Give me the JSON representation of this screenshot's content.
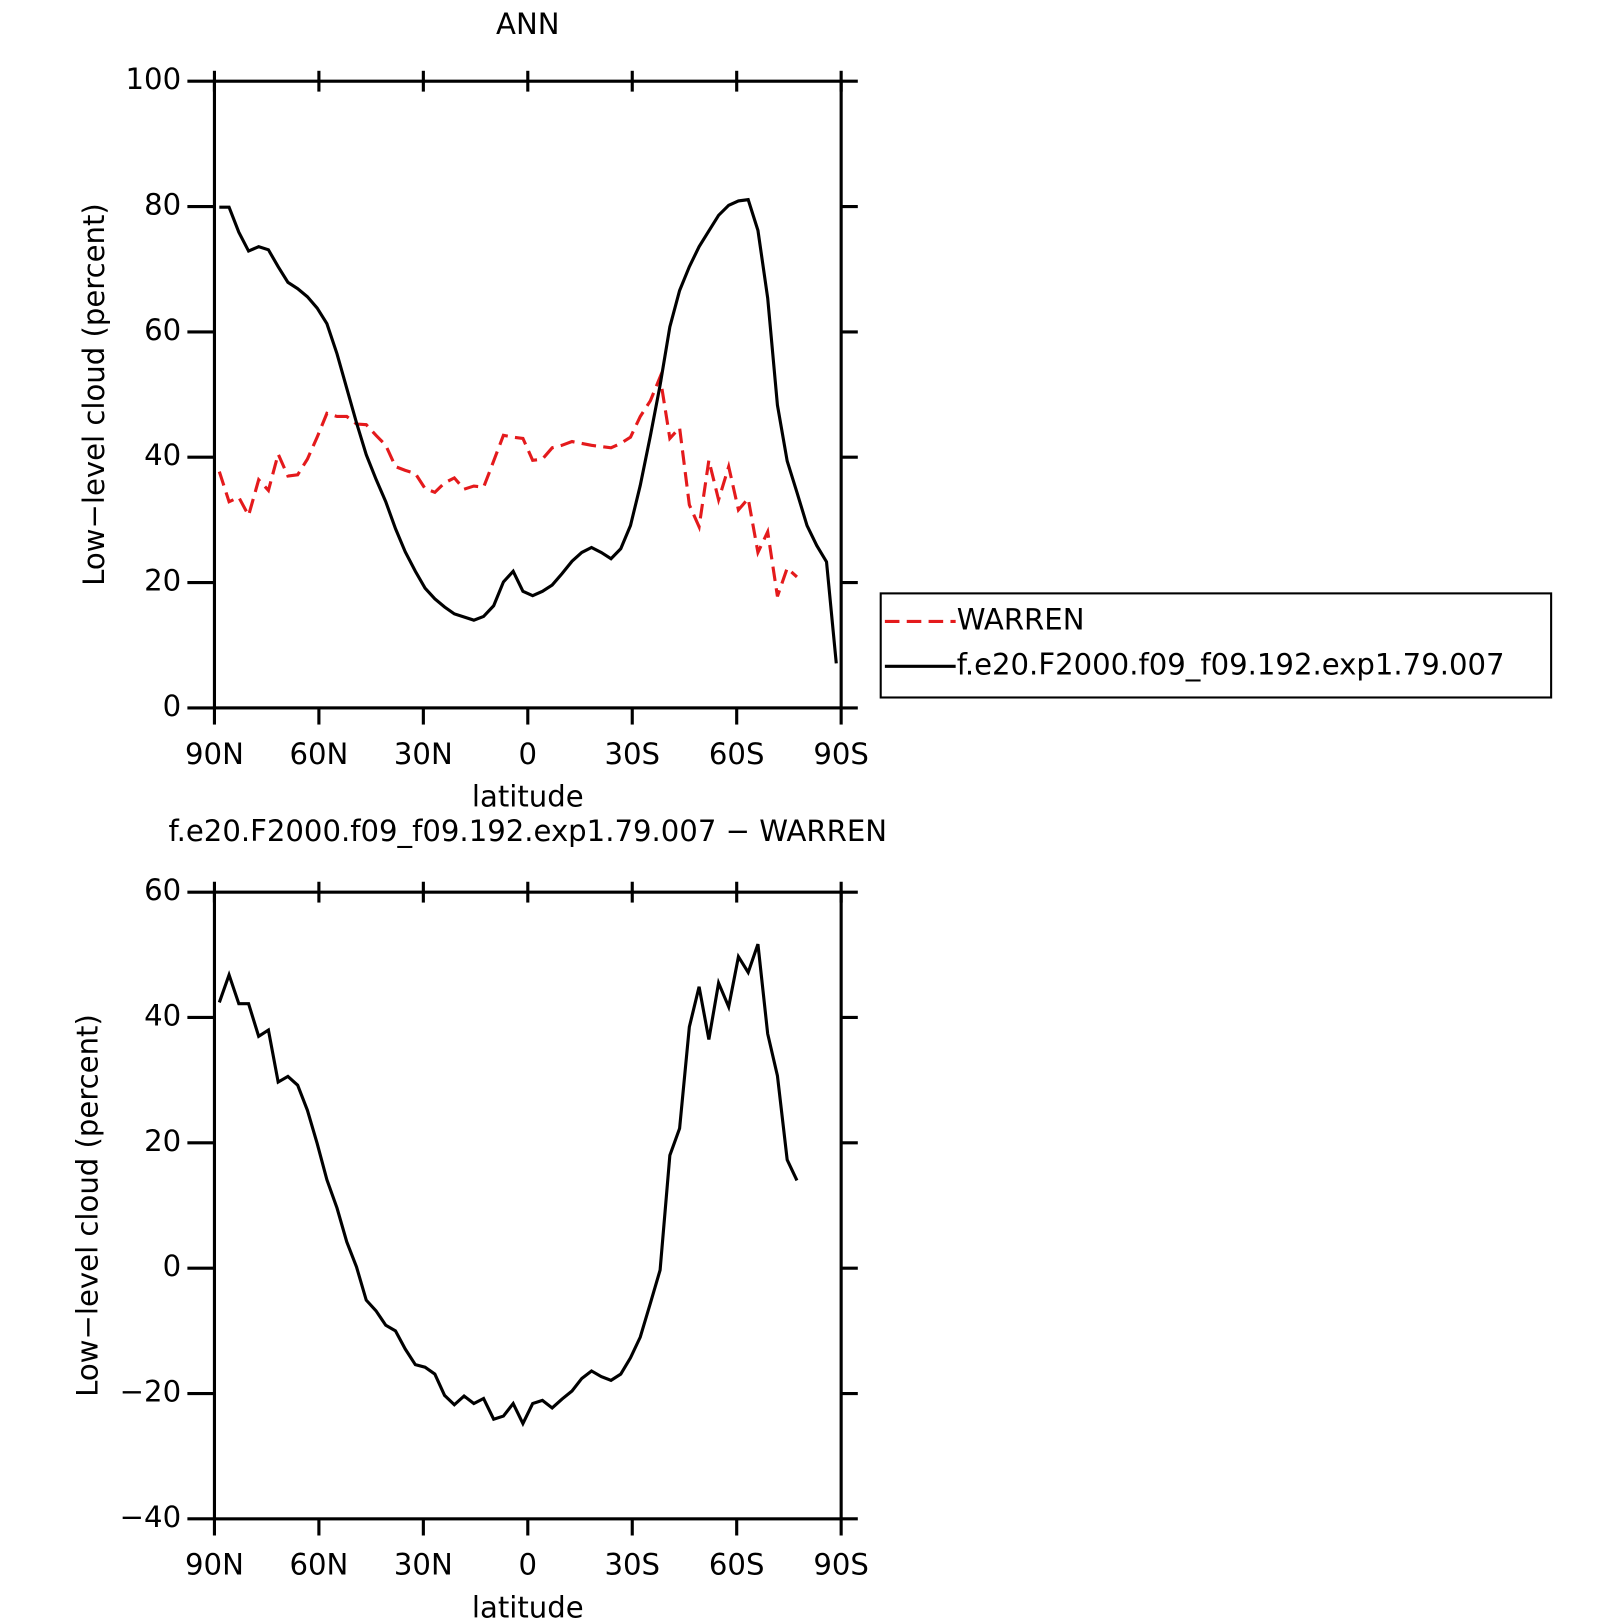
{
  "chart_data": [
    {
      "type": "line",
      "title": "ANN",
      "xlabel": "latitude",
      "ylabel": "Low−level cloud (percent)",
      "x": [
        88.6,
        85.8,
        83.0,
        80.2,
        77.3,
        74.5,
        71.7,
        68.9,
        66.1,
        63.3,
        60.5,
        57.7,
        54.8,
        52.0,
        49.2,
        46.4,
        43.6,
        40.8,
        38.0,
        35.2,
        32.3,
        29.5,
        26.7,
        23.9,
        21.1,
        18.3,
        15.5,
        12.7,
        9.8,
        7.0,
        4.2,
        1.4,
        -1.4,
        -4.2,
        -7.0,
        -9.8,
        -12.7,
        -15.5,
        -18.3,
        -21.1,
        -23.9,
        -26.7,
        -29.5,
        -32.3,
        -35.2,
        -38.0,
        -40.8,
        -43.6,
        -46.4,
        -49.2,
        -52.0,
        -54.8,
        -57.7,
        -60.5,
        -63.3,
        -66.1,
        -68.9,
        -71.7,
        -74.5,
        -77.3,
        -80.2,
        -83.0,
        -85.8,
        -88.6
      ],
      "series": [
        {
          "name": "WARREN",
          "color": "#e41a1c",
          "linestyle": "dashed",
          "values": [
            37.7,
            32.9,
            33.6,
            30.7,
            36.4,
            34.7,
            40.5,
            37.0,
            37.2,
            39.7,
            43.2,
            47.0,
            46.5,
            46.5,
            45.3,
            45.2,
            43.5,
            41.9,
            38.5,
            37.9,
            37.4,
            35.0,
            34.4,
            35.9,
            36.7,
            34.9,
            35.4,
            35.2,
            39.4,
            43.5,
            43.2,
            43.0,
            39.5,
            39.7,
            41.5,
            41.9,
            42.5,
            42.2,
            41.9,
            41.7,
            41.5,
            42.2,
            43.2,
            46.5,
            49.0,
            52.8,
            43.0,
            44.7,
            32.4,
            28.9,
            39.5,
            33.2,
            38.5,
            31.6,
            33.4,
            24.8,
            28.1,
            17.8,
            22.3,
            20.9,
            null,
            null,
            null,
            null
          ]
        },
        {
          "name": "f.e20.F2000.f09_f09.192.exp1.79.007",
          "color": "#000000",
          "linestyle": "solid",
          "values": [
            79.9,
            79.9,
            75.9,
            72.9,
            73.6,
            73.1,
            70.4,
            67.9,
            66.9,
            65.6,
            63.8,
            61.3,
            56.5,
            51.0,
            45.5,
            40.4,
            36.5,
            32.9,
            28.6,
            24.9,
            21.8,
            19.1,
            17.4,
            16.1,
            15.0,
            14.5,
            14.0,
            14.6,
            16.3,
            20.1,
            21.8,
            18.6,
            17.9,
            18.6,
            19.6,
            21.4,
            23.4,
            24.8,
            25.6,
            24.8,
            23.8,
            25.4,
            29.1,
            35.5,
            43.4,
            51.5,
            60.8,
            66.6,
            70.4,
            73.6,
            76.1,
            78.6,
            80.2,
            80.9,
            81.1,
            76.2,
            65.4,
            48.3,
            39.4,
            34.4,
            29.1,
            25.9,
            23.3,
            7.1
          ]
        }
      ],
      "xlim": [
        90,
        -90
      ],
      "xticks": [
        {
          "value": 90,
          "label": "90N"
        },
        {
          "value": 60,
          "label": "60N"
        },
        {
          "value": 30,
          "label": "30N"
        },
        0,
        {
          "value": -30,
          "label": "30S"
        },
        {
          "value": -60,
          "label": "60S"
        },
        {
          "value": -90,
          "label": "90S"
        }
      ],
      "ylim": [
        0,
        100
      ],
      "yticks": [
        0,
        20,
        40,
        60,
        80,
        100
      ],
      "legend": "right"
    },
    {
      "type": "line",
      "title": "f.e20.F2000.f09_f09.192.exp1.79.007 − WARREN",
      "xlabel": "latitude",
      "ylabel": "Low−level cloud (percent)",
      "x": [
        88.6,
        85.8,
        83.0,
        80.2,
        77.3,
        74.5,
        71.7,
        68.9,
        66.1,
        63.3,
        60.5,
        57.7,
        54.8,
        52.0,
        49.2,
        46.4,
        43.6,
        40.8,
        38.0,
        35.2,
        32.3,
        29.5,
        26.7,
        23.9,
        21.1,
        18.3,
        15.5,
        12.7,
        9.8,
        7.0,
        4.2,
        1.4,
        -1.4,
        -4.2,
        -7.0,
        -9.8,
        -12.7,
        -15.5,
        -18.3,
        -21.1,
        -23.9,
        -26.7,
        -29.5,
        -32.3,
        -35.2,
        -38.0,
        -40.8,
        -43.6,
        -46.4,
        -49.2,
        -52.0,
        -54.8,
        -57.7,
        -60.5,
        -63.3,
        -66.1,
        -68.9,
        -71.7,
        -74.5,
        -77.3,
        -80.2,
        -83.0,
        -85.8,
        -88.6
      ],
      "series": [
        {
          "color": "#000000",
          "linestyle": "solid",
          "values": [
            42.4,
            46.8,
            42.2,
            42.2,
            37.0,
            38.0,
            29.7,
            30.6,
            29.2,
            25.2,
            19.9,
            14.1,
            9.6,
            4.2,
            0.2,
            -5.1,
            -6.8,
            -9.1,
            -10.0,
            -12.9,
            -15.4,
            -15.8,
            -16.9,
            -20.3,
            -21.8,
            -20.4,
            -21.6,
            -20.8,
            -24.1,
            -23.6,
            -21.6,
            -24.8,
            -21.6,
            -21.1,
            -22.3,
            -20.9,
            -19.6,
            -17.6,
            -16.4,
            -17.3,
            -17.9,
            -16.9,
            -14.3,
            -11.0,
            -5.6,
            -0.3,
            18.0,
            22.3,
            38.5,
            44.9,
            36.5,
            45.5,
            41.7,
            49.7,
            47.2,
            51.7,
            37.4,
            30.7,
            17.3,
            14.0,
            null,
            null,
            null,
            null
          ]
        }
      ],
      "xlim": [
        90,
        -90
      ],
      "xticks": [
        {
          "value": 90,
          "label": "90N"
        },
        {
          "value": 60,
          "label": "60N"
        },
        {
          "value": 30,
          "label": "30N"
        },
        0,
        {
          "value": -30,
          "label": "30S"
        },
        {
          "value": -60,
          "label": "60S"
        },
        {
          "value": -90,
          "label": "90S"
        }
      ],
      "ylim": [
        -40,
        60
      ],
      "yticks": [
        {
          "value": -40,
          "label": "−40"
        },
        {
          "value": -20,
          "label": "−20"
        },
        0,
        20,
        40,
        60
      ]
    }
  ]
}
